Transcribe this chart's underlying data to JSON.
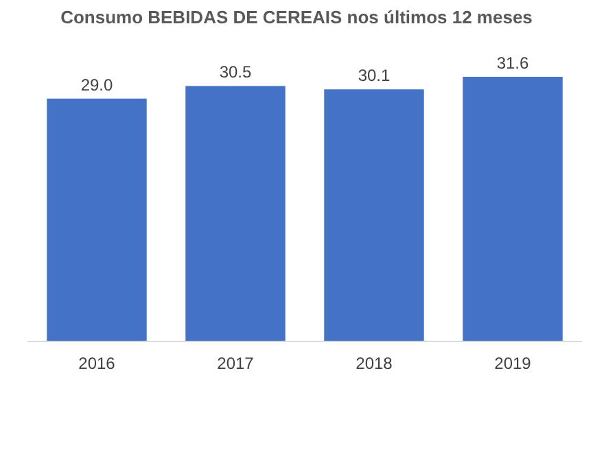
{
  "chart_data": {
    "type": "bar",
    "title": "Consumo BEBIDAS DE CEREAIS nos últimos 12 meses",
    "categories": [
      "2016",
      "2017",
      "2018",
      "2019"
    ],
    "values": [
      29.0,
      30.5,
      30.1,
      31.6
    ],
    "value_labels": [
      "29.0",
      "30.5",
      "30.1",
      "31.6"
    ],
    "color": "#4472c4"
  }
}
